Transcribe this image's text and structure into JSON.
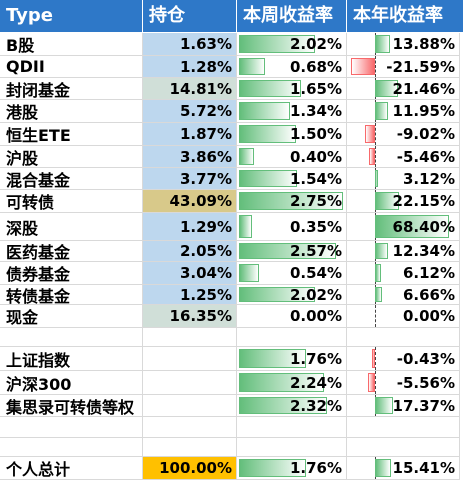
{
  "colors": {
    "header_bg": "#2e78c8",
    "hold_blue": "#bdd7ee",
    "hold_gray": "#d0dfd8",
    "hold_tan": "#d8c98a",
    "hold_total": "#ffc000",
    "bar_green": "#63be7b",
    "bar_red": "#f8696b"
  },
  "headers": {
    "type": "Type",
    "holding": "持仓",
    "week": "本周收益率",
    "year": "本年收益率"
  },
  "max_week_pct": 2.75,
  "year_range_pct": [
    -21.59,
    68.4
  ],
  "rows": [
    {
      "name": "B股",
      "holding": "1.63%",
      "hold_color": "#bdd7ee",
      "week": "2.02%",
      "week_val": 2.02,
      "year": "13.88%",
      "year_val": 13.88
    },
    {
      "name": "QDII",
      "holding": "1.28%",
      "hold_color": "#bdd7ee",
      "week": "0.68%",
      "week_val": 0.68,
      "year": "-21.59%",
      "year_val": -21.59
    },
    {
      "name": "封闭基金",
      "holding": "14.81%",
      "hold_color": "#d0dfd8",
      "week": "1.65%",
      "week_val": 1.65,
      "year": "21.46%",
      "year_val": 21.46
    },
    {
      "name": "港股",
      "holding": "5.72%",
      "hold_color": "#bdd7ee",
      "week": "1.34%",
      "week_val": 1.34,
      "year": "11.95%",
      "year_val": 11.95
    },
    {
      "name": "恒生ETE",
      "holding": "1.87%",
      "hold_color": "#bdd7ee",
      "week": "1.50%",
      "week_val": 1.5,
      "year": "-9.02%",
      "year_val": -9.02
    },
    {
      "name": "沪股",
      "holding": "3.86%",
      "hold_color": "#bdd7ee",
      "week": "0.40%",
      "week_val": 0.4,
      "year": "-5.46%",
      "year_val": -5.46
    },
    {
      "name": "混合基金",
      "holding": "3.77%",
      "hold_color": "#bdd7ee",
      "week": "1.54%",
      "week_val": 1.54,
      "year": "3.12%",
      "year_val": 3.12
    },
    {
      "name": "可转债",
      "holding": "43.09%",
      "hold_color": "#d8c98a",
      "week": "2.75%",
      "week_val": 2.75,
      "year": "22.15%",
      "year_val": 22.15
    },
    {
      "name": "深股",
      "holding": "1.29%",
      "hold_color": "#bdd7ee",
      "week": "0.35%",
      "week_val": 0.35,
      "year": "68.40%",
      "year_val": 68.4
    },
    {
      "name": "医药基金",
      "holding": "2.05%",
      "hold_color": "#bdd7ee",
      "week": "2.57%",
      "week_val": 2.57,
      "year": "12.34%",
      "year_val": 12.34
    },
    {
      "name": "债券基金",
      "holding": "3.04%",
      "hold_color": "#bdd7ee",
      "week": "0.54%",
      "week_val": 0.54,
      "year": "6.12%",
      "year_val": 6.12
    },
    {
      "name": "转债基金",
      "holding": "1.25%",
      "hold_color": "#bdd7ee",
      "week": "2.02%",
      "week_val": 2.02,
      "year": "6.66%",
      "year_val": 6.66
    },
    {
      "name": "现金",
      "holding": "16.35%",
      "hold_color": "#d0dfd8",
      "week": "0.00%",
      "week_val": 0,
      "year": "0.00%",
      "year_val": 0
    },
    {
      "name": "",
      "holding": "",
      "hold_color": "",
      "week": "",
      "week_val": null,
      "year": "",
      "year_val": null
    },
    {
      "name": "上证指数",
      "holding": "",
      "hold_color": "",
      "week": "1.76%",
      "week_val": 1.76,
      "year": "-0.43%",
      "year_val": -0.43
    },
    {
      "name": "沪深300",
      "holding": "",
      "hold_color": "",
      "week": "2.24%",
      "week_val": 2.24,
      "year": "-5.56%",
      "year_val": -5.56
    },
    {
      "name": "集思录可转债等权",
      "holding": "",
      "hold_color": "",
      "week": "2.32%",
      "week_val": 2.32,
      "year": "17.37%",
      "year_val": 17.37
    },
    {
      "name": "",
      "holding": "",
      "hold_color": "",
      "week": "",
      "week_val": null,
      "year": "",
      "year_val": null
    },
    {
      "name": "",
      "holding": "",
      "hold_color": "",
      "week": "",
      "week_val": null,
      "year": "",
      "year_val": null
    },
    {
      "name": "个人总计",
      "holding": "100.00%",
      "hold_color": "#ffc000",
      "week": "1.76%",
      "week_val": 1.76,
      "year": "15.41%",
      "year_val": 15.41
    }
  ]
}
